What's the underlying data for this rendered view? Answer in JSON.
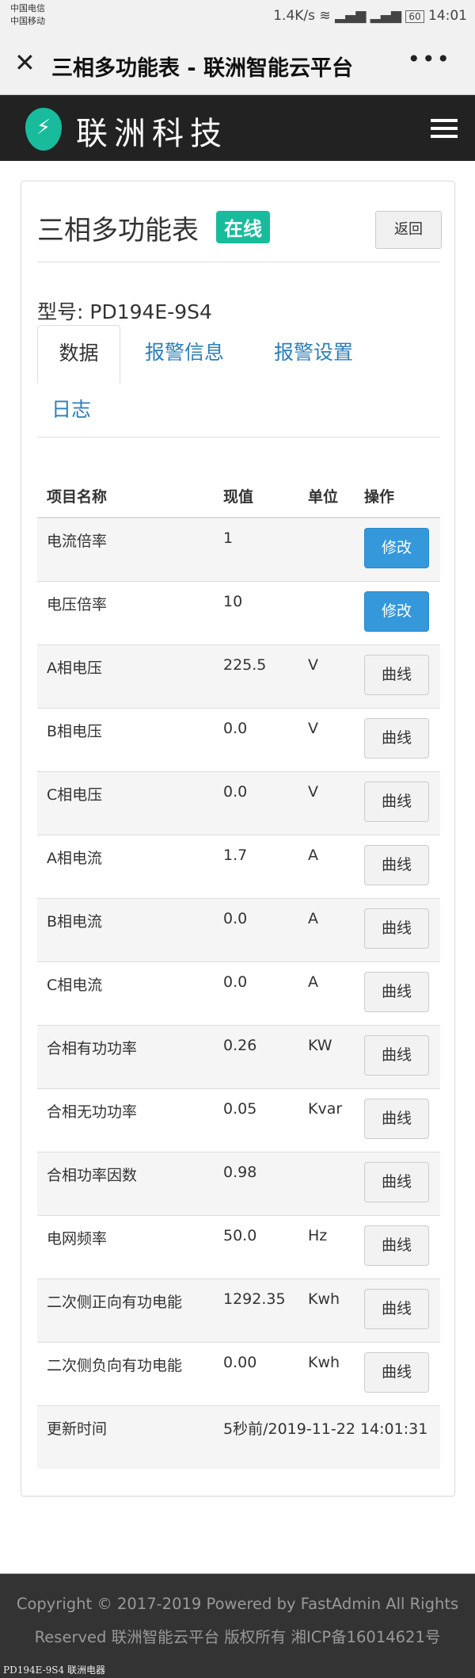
{
  "status_bar": {
    "carrier1": "中国电信",
    "carrier2": "中国移动",
    "speed": "1.4K/s",
    "battery": "60",
    "time": "14:01"
  },
  "browser": {
    "title": "三相多功能表 - 联洲智能云平台",
    "close": "✕",
    "more": "•••"
  },
  "nav": {
    "brand": "联洲科技",
    "logo_icon": "lightning-icon",
    "menu_icon": "hamburger-icon"
  },
  "page": {
    "title": "三相多功能表",
    "status": "在线",
    "status_color": "#18bc9c",
    "back": "返回",
    "model": "型号: PD194E-9S4"
  },
  "tabs": [
    {
      "label": "数据",
      "active": true
    },
    {
      "label": "报警信息"
    },
    {
      "label": "报警设置"
    },
    {
      "label": "日志"
    }
  ],
  "table": {
    "headers": [
      "项目名称",
      "现值",
      "单位",
      "操作"
    ],
    "rows": [
      {
        "name": "电流倍率",
        "value": "1",
        "unit": "",
        "action": "修改"
      },
      {
        "name": "电压倍率",
        "value": "10",
        "unit": "",
        "action": "修改"
      },
      {
        "name": "A相电压",
        "value": "225.5",
        "unit": "V",
        "action": "曲线"
      },
      {
        "name": "B相电压",
        "value": "0.0",
        "unit": "V",
        "action": "曲线"
      },
      {
        "name": "C相电压",
        "value": "0.0",
        "unit": "V",
        "action": "曲线"
      },
      {
        "name": "A相电流",
        "value": "1.7",
        "unit": "A",
        "action": "曲线"
      },
      {
        "name": "B相电流",
        "value": "0.0",
        "unit": "A",
        "action": "曲线"
      },
      {
        "name": "C相电流",
        "value": "0.0",
        "unit": "A",
        "action": "曲线"
      },
      {
        "name": "合相有功功率",
        "value": "0.26",
        "unit": "KW",
        "action": "曲线"
      },
      {
        "name": "合相无功功率",
        "value": "0.05",
        "unit": "Kvar",
        "action": "曲线"
      },
      {
        "name": "合相功率因数",
        "value": "0.98",
        "unit": "",
        "action": "曲线"
      },
      {
        "name": "电网频率",
        "value": "50.0",
        "unit": "Hz",
        "action": "曲线"
      },
      {
        "name": "二次侧正向有功电能",
        "value": "1292.35",
        "unit": "Kwh",
        "action": "曲线"
      },
      {
        "name": "二次侧负向有功电能",
        "value": "0.00",
        "unit": "Kwh",
        "action": "曲线"
      }
    ],
    "update_label": "更新时间",
    "update_value": "5秒前/2019-11-22 14:01:31"
  },
  "footer": {
    "line1": "Copyright © 2017-2019 Powered by FastAdmin All Rights",
    "line2": "Reserved 联洲智能云平台 版权所有 湘ICP备16014621号"
  },
  "watermark": "PD194E-9S4 联洲电器"
}
